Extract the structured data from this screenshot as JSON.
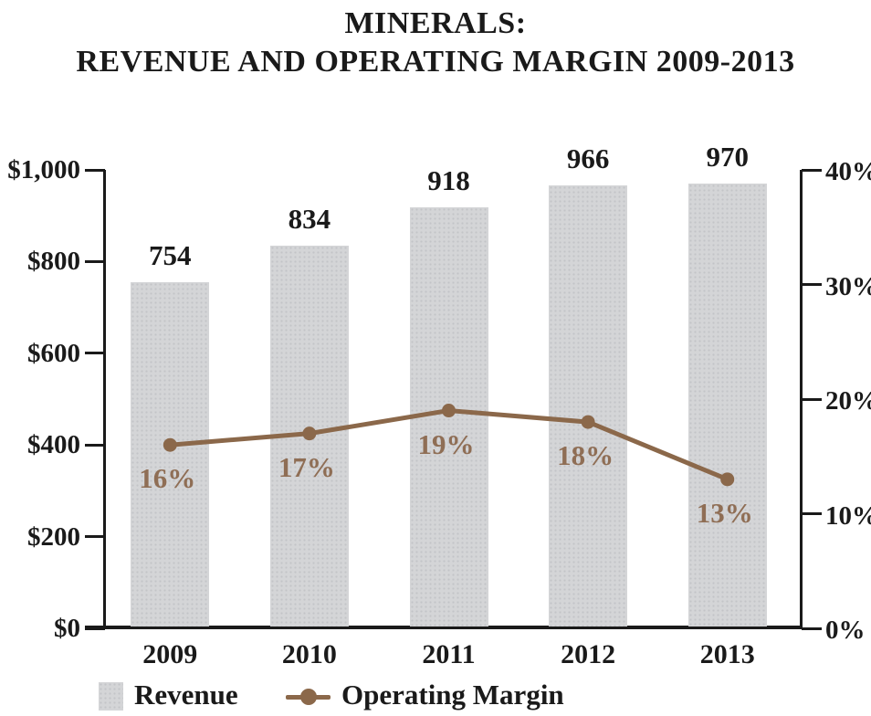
{
  "title": {
    "line1": "MINERALS:",
    "line2": "REVENUE AND OPERATING MARGIN 2009-2013"
  },
  "legend": {
    "revenue_label": "Revenue",
    "operating_margin_label": "Operating Margin"
  },
  "colors": {
    "bar_fill": "#d4d5d7",
    "bar_dot": "#c2c4c7",
    "line": "#8b684a",
    "pct_label": "#8f6e55",
    "axis": "#1a1a1a"
  },
  "chart_data": {
    "type": "bar+line",
    "title": "MINERALS: REVENUE AND OPERATING MARGIN 2009-2013",
    "categories": [
      "2009",
      "2010",
      "2011",
      "2012",
      "2013"
    ],
    "series": [
      {
        "name": "Revenue",
        "kind": "bar",
        "axis": "left",
        "values": [
          754,
          834,
          918,
          966,
          970
        ],
        "data_labels": [
          "754",
          "834",
          "918",
          "966",
          "970"
        ]
      },
      {
        "name": "Operating Margin",
        "kind": "line",
        "axis": "right",
        "values": [
          16,
          17,
          19,
          18,
          13
        ],
        "data_labels": [
          "16%",
          "17%",
          "19%",
          "18%",
          "13%"
        ]
      }
    ],
    "left_axis": {
      "min": 0,
      "max": 1000,
      "ticks": [
        "$1,000",
        "$800",
        "$600",
        "$400",
        "$200",
        "$0"
      ]
    },
    "right_axis": {
      "min": 0,
      "max": 40,
      "ticks": [
        "40%",
        "30%",
        "20%",
        "10%",
        "0%"
      ]
    },
    "grid": false,
    "legend_position": "bottom"
  }
}
